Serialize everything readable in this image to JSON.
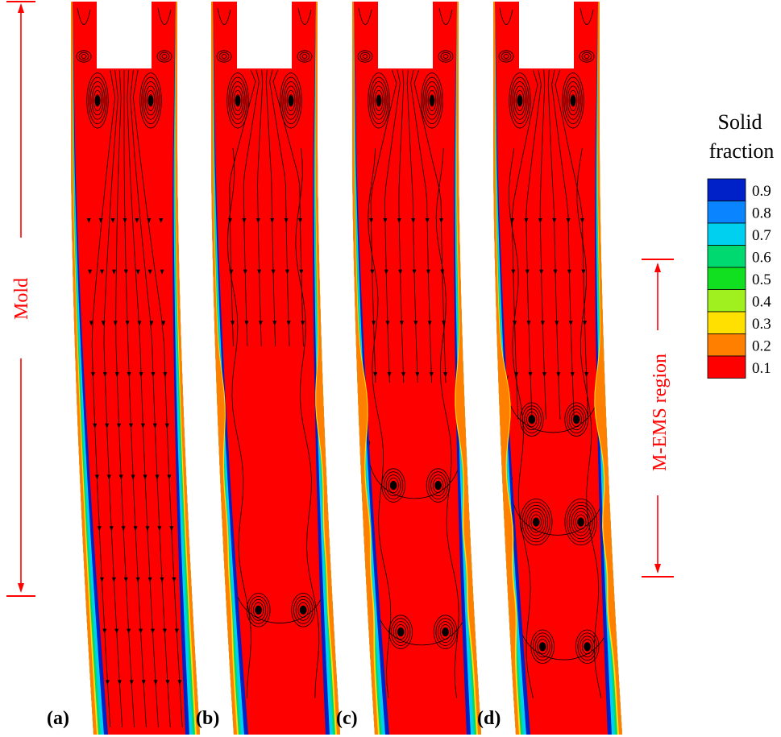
{
  "panels": [
    {
      "label": "(a)",
      "vortex_rows": []
    },
    {
      "label": "(b)",
      "vortex_rows": [
        0.83
      ]
    },
    {
      "label": "(c)",
      "vortex_rows": [
        0.66,
        0.86
      ]
    },
    {
      "label": "(d)",
      "vortex_rows": [
        0.57,
        0.71,
        0.88
      ]
    }
  ],
  "annotations": {
    "mold": "Mold",
    "memc": "M-EMS region"
  },
  "legend": {
    "title_line1": "Solid",
    "title_line2": "fraction",
    "levels": [
      {
        "value": "0.9",
        "color": "#0020c8"
      },
      {
        "value": "0.8",
        "color": "#0a84ff"
      },
      {
        "value": "0.7",
        "color": "#00d0f0"
      },
      {
        "value": "0.6",
        "color": "#00d870"
      },
      {
        "value": "0.5",
        "color": "#10e020"
      },
      {
        "value": "0.4",
        "color": "#a0f020"
      },
      {
        "value": "0.3",
        "color": "#ffe000"
      },
      {
        "value": "0.2",
        "color": "#ff8000"
      },
      {
        "value": "0.1",
        "color": "#ff0000"
      }
    ]
  },
  "colors": {
    "liquid": "#ff0000",
    "annotation": "#ff0000",
    "streamline": "#000000"
  }
}
